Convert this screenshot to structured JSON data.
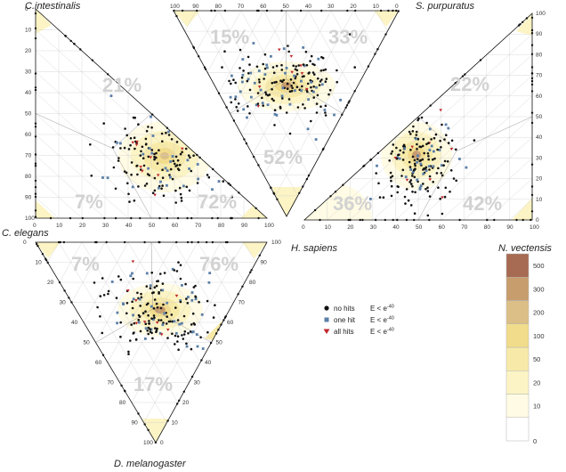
{
  "labels": {
    "top_left": "C.intestinalis",
    "top_right": "S. purpuratus",
    "left_mid": "C. elegans",
    "center": "H. sapiens",
    "right_mid": "N. vectensis",
    "bottom": "D. melanogaster"
  },
  "ticks": {
    "scale": [
      "0",
      "10",
      "20",
      "30",
      "40",
      "50",
      "60",
      "70",
      "80",
      "90",
      "100"
    ]
  },
  "legend": {
    "items": [
      {
        "label": "no hits",
        "expr": "E < e",
        "sup": "-40",
        "color": "#111111",
        "shape": "circle"
      },
      {
        "label": "one hit",
        "expr": "E < e",
        "sup": "-40",
        "color": "#5b7fa8",
        "shape": "square"
      },
      {
        "label": "all hits",
        "expr": "E < e",
        "sup": "-40",
        "color": "#c0272d",
        "shape": "triangle"
      }
    ]
  },
  "colorbar": {
    "ticks": [
      "0",
      "10",
      "20",
      "50",
      "100",
      "200",
      "300",
      "500"
    ],
    "colors": [
      "#ffffff",
      "#fffbe4",
      "#fcf4c4",
      "#f7eaa8",
      "#f1dc8c",
      "#dcbf87",
      "#c89d6e",
      "#a76a52"
    ]
  },
  "chart_data": {
    "type": "scatter",
    "subtype": "ternary-density",
    "panels": [
      {
        "id": "ci-ce",
        "percentages": {
          "top": "21%",
          "bottom_left": "7%",
          "bottom_right": "72%"
        }
      },
      {
        "id": "ci-hs-sp",
        "percentages": {
          "top_left": "15%",
          "top_right": "33%",
          "bottom": "52%"
        }
      },
      {
        "id": "sp-nv",
        "percentages": {
          "top": "22%",
          "bottom_left": "36%",
          "bottom_right": "42%"
        }
      },
      {
        "id": "ce-dm",
        "percentages": {
          "top_left": "7%",
          "top_right": "76%",
          "bottom": "17%"
        }
      }
    ],
    "point_categories": [
      "no hits",
      "one hit",
      "all hits"
    ],
    "density_scale": [
      0,
      10,
      20,
      50,
      100,
      200,
      300,
      500
    ]
  }
}
